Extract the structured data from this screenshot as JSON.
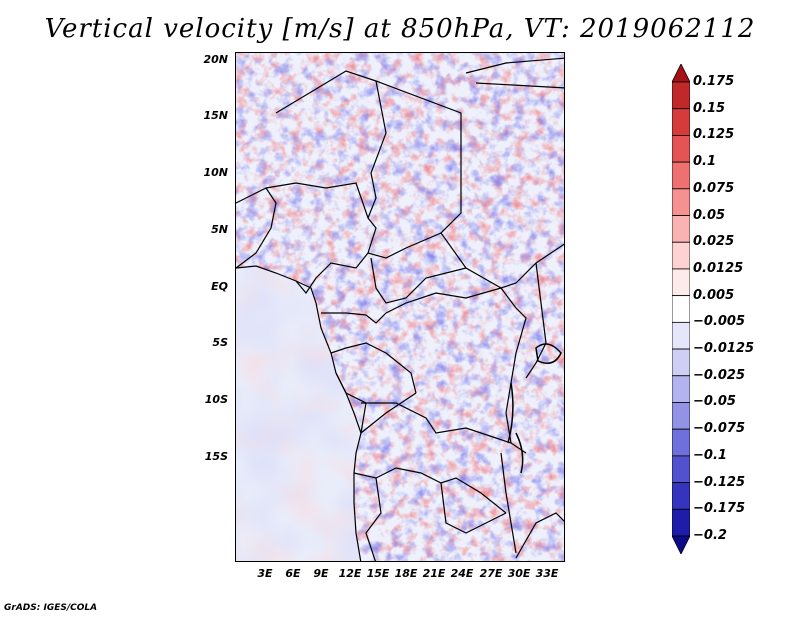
{
  "title": "Vertical velocity [m/s] at 850hPa, VT: 2019062112",
  "footer": "GrADS: IGES/COLA",
  "lat_labels": [
    "20N",
    "15N",
    "10N",
    "5N",
    "EQ",
    "5S",
    "10S",
    "15S"
  ],
  "lon_labels": [
    "3E",
    "6E",
    "9E",
    "12E",
    "15E",
    "18E",
    "21E",
    "24E",
    "27E",
    "30E",
    "33E"
  ],
  "colorbar": {
    "labels": [
      "0.175",
      "0.15",
      "0.125",
      "0.1",
      "0.075",
      "0.05",
      "0.025",
      "0.0125",
      "0.005",
      "−0.005",
      "−0.0125",
      "−0.025",
      "−0.05",
      "−0.075",
      "−0.1",
      "−0.125",
      "−0.175",
      "−0.2"
    ],
    "colors": [
      "#a50f15",
      "#c0282a",
      "#d63b3b",
      "#e55454",
      "#ef7070",
      "#f59191",
      "#f9b3b3",
      "#fcd2d2",
      "#fdeaea",
      "#ffffff",
      "#e6e6fa",
      "#cfcff5",
      "#b3b3ef",
      "#9393e6",
      "#7070dc",
      "#5252cf",
      "#3434bf",
      "#1d1daa",
      "#0b0b8c"
    ]
  },
  "field_colors": {
    "red": "#e0464a",
    "blue": "#4a4ad8",
    "white": "#ffffff"
  }
}
